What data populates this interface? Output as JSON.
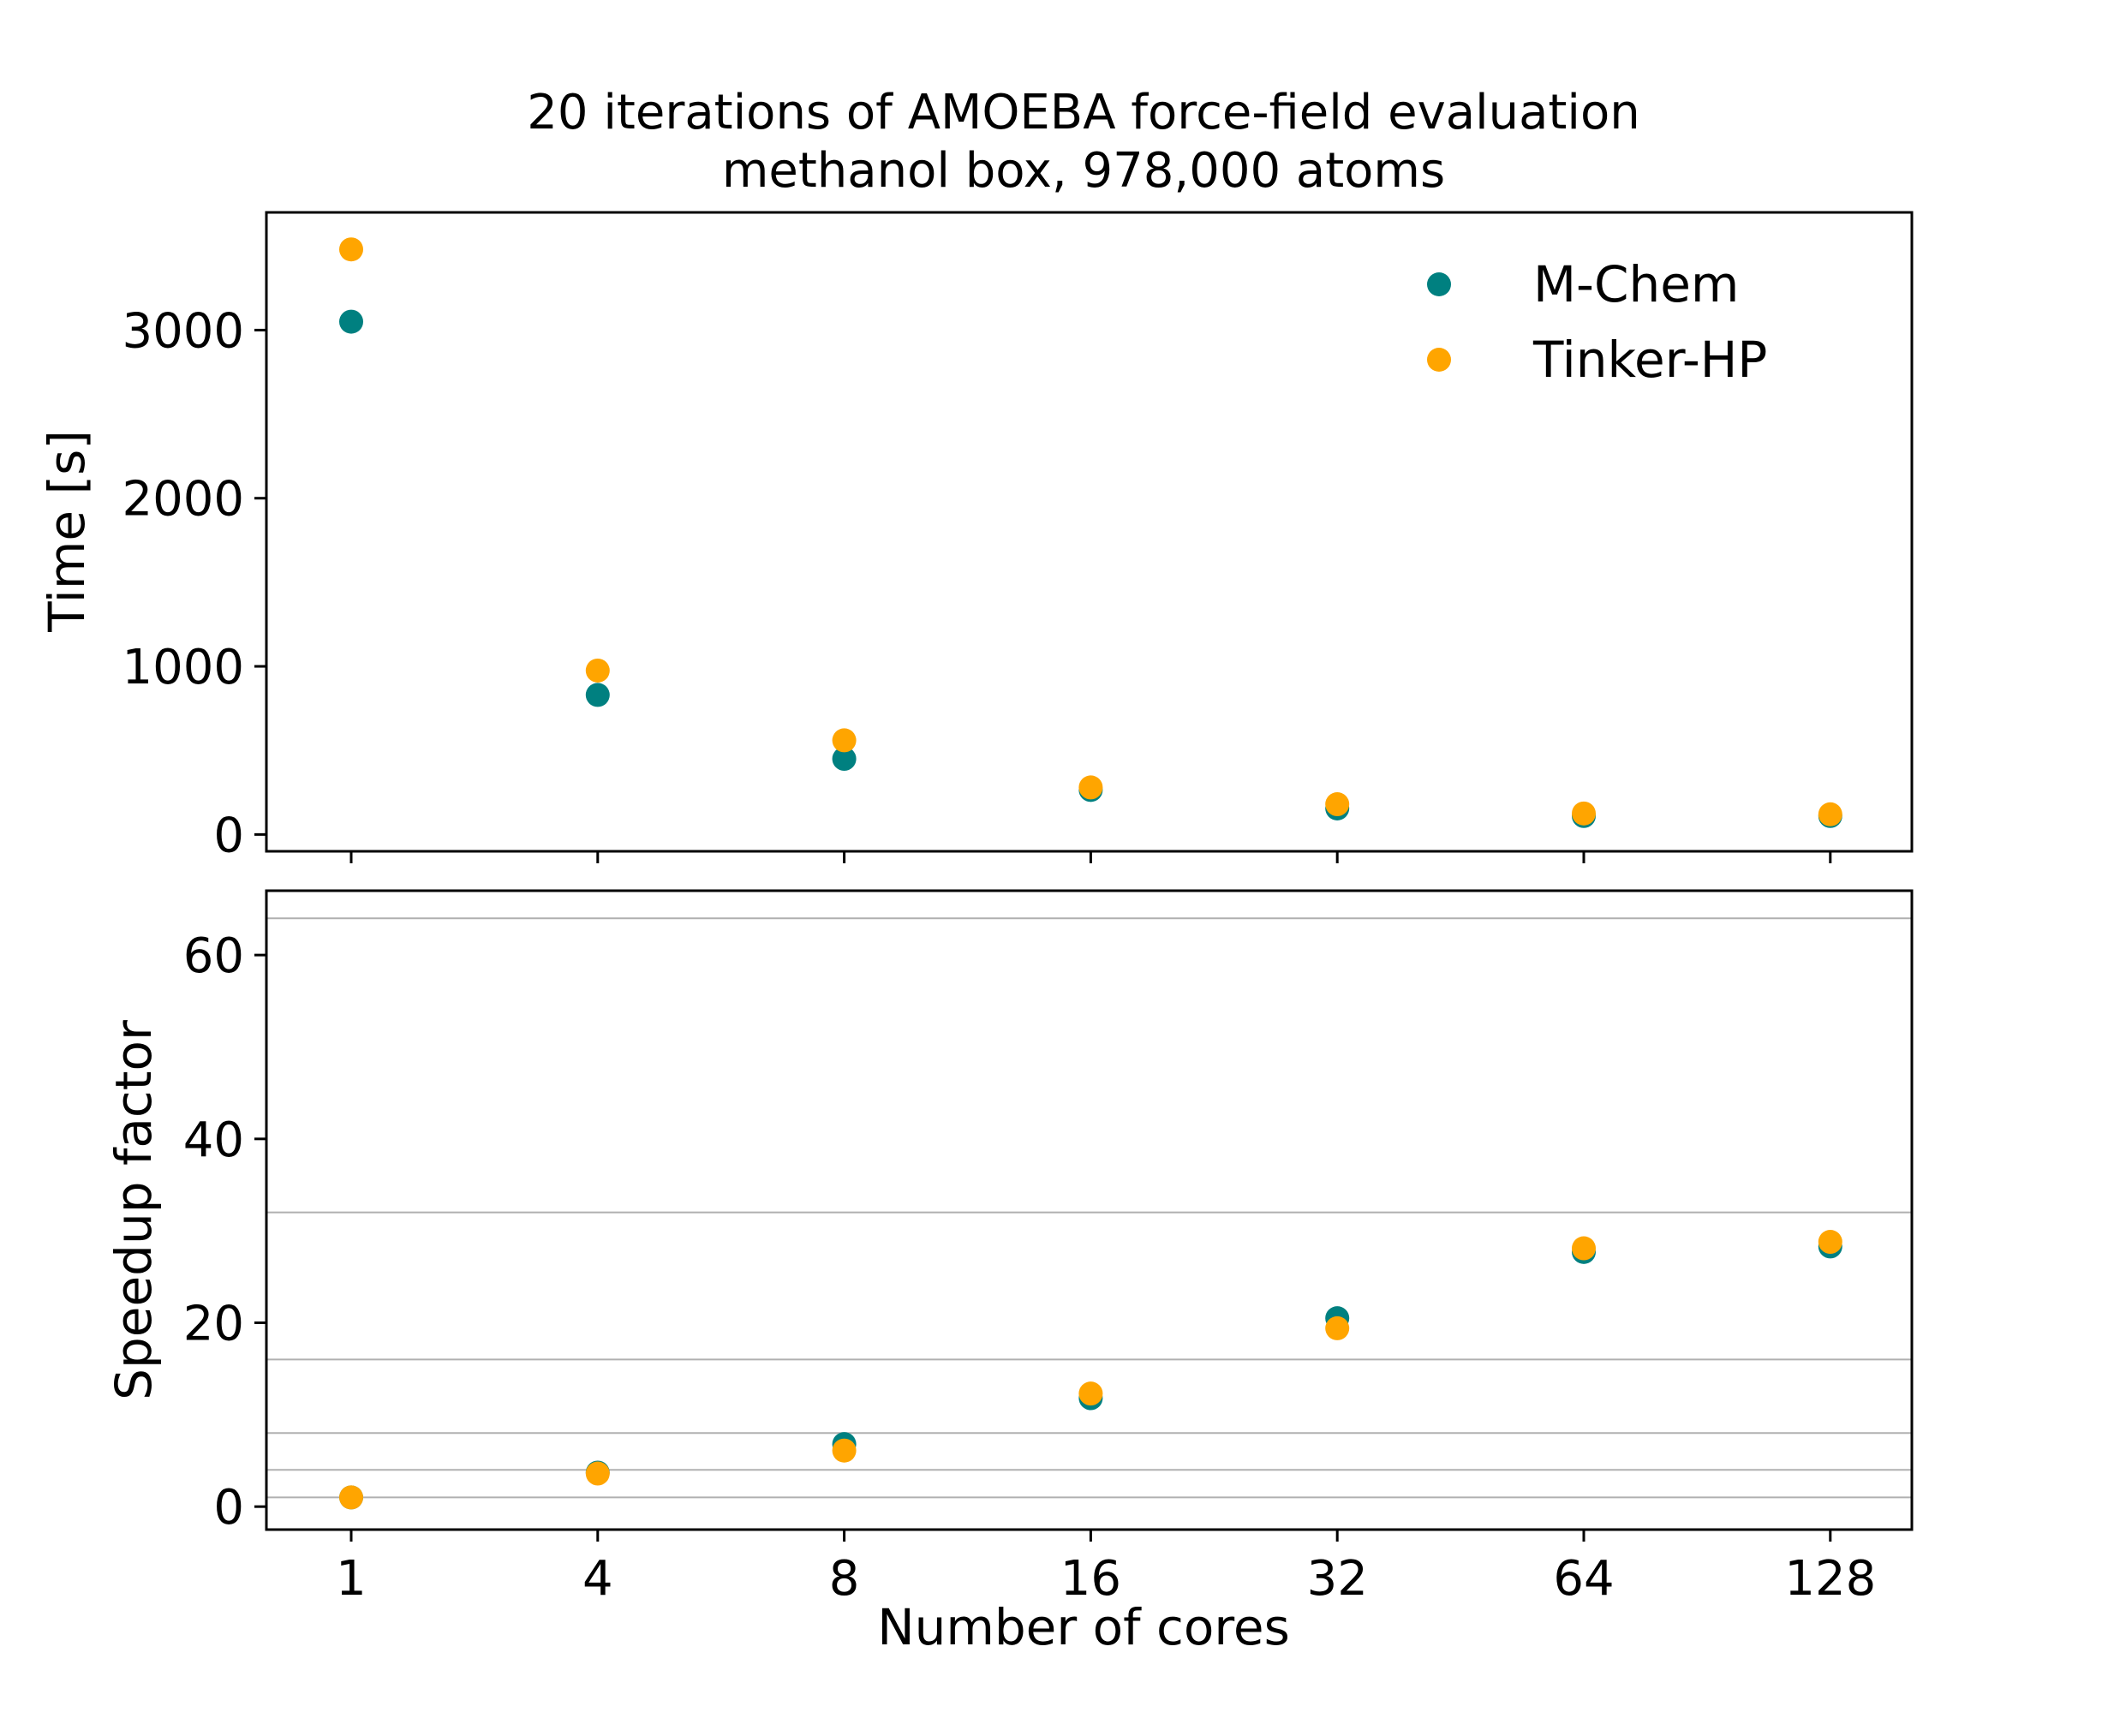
{
  "chart_data": {
    "type": "scatter",
    "title_lines": [
      "20 iterations of AMOEBA force-field evaluation",
      "methanol box, 978,000 atoms"
    ],
    "xlabel": "Number of cores",
    "categories": [
      "1",
      "4",
      "8",
      "16",
      "32",
      "64",
      "128"
    ],
    "legend": {
      "placement": "top-right"
    },
    "panels": [
      {
        "ylabel": "Time [s]",
        "ylim": [
          -100,
          3700
        ],
        "yticks": [
          0,
          1000,
          2000,
          3000
        ],
        "grid": false,
        "series": [
          {
            "name": "M-Chem",
            "color": "#008080",
            "values": [
              3050,
              830,
              450,
              265,
              155,
              110,
              110
            ]
          },
          {
            "name": "Tinker-HP",
            "color": "#FFA500",
            "values": [
              3480,
              975,
              560,
              280,
              180,
              125,
              120
            ]
          }
        ]
      },
      {
        "ylabel": "Speedup factor",
        "ylim": [
          -2.5,
          67
        ],
        "yticks": [
          0,
          20,
          40,
          60
        ],
        "reference_lines": [
          1,
          4,
          8,
          16,
          32,
          64
        ],
        "series": [
          {
            "name": "M-Chem",
            "color": "#008080",
            "values": [
              1,
              3.7,
              6.8,
              11.8,
              20.5,
              27.7,
              28.3
            ]
          },
          {
            "name": "Tinker-HP",
            "color": "#FFA500",
            "values": [
              1,
              3.6,
              6.1,
              12.3,
              19.4,
              28.1,
              28.8
            ]
          }
        ]
      }
    ]
  }
}
